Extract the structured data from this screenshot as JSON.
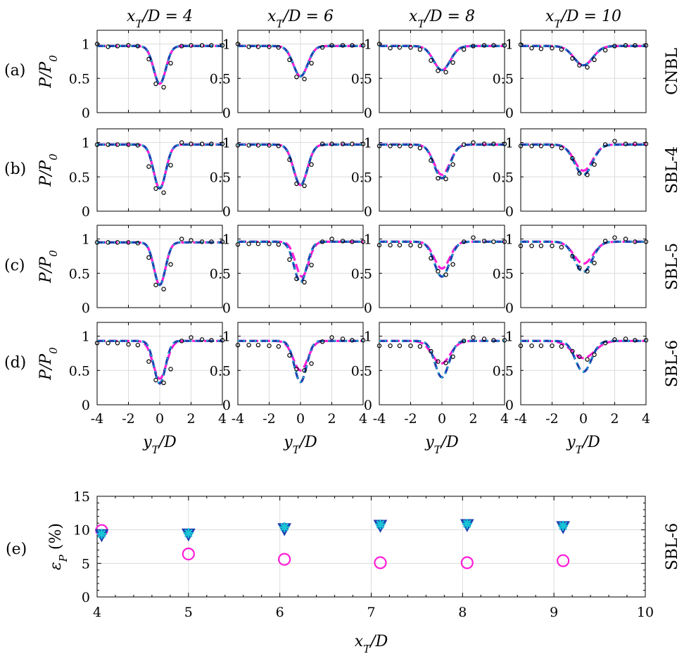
{
  "chart_data": [
    {
      "type": "line",
      "description": "Grid of 16 lateral profiles of normalized turbine power P/P0 versus yT/D at 4 downstream positions (columns) and 4 stability cases (rows)",
      "columns": [
        "x_T/D = 4",
        "x_T/D = 6",
        "x_T/D = 8",
        "x_T/D = 10"
      ],
      "rows": [
        {
          "tag": "(a)",
          "case": "CNBL"
        },
        {
          "tag": "(b)",
          "case": "SBL-4"
        },
        {
          "tag": "(c)",
          "case": "SBL-5"
        },
        {
          "tag": "(d)",
          "case": "SBL-6"
        }
      ],
      "xlabel": "y_T/D",
      "ylabel": "P/P_0",
      "xlim": [
        -4,
        4
      ],
      "ylim": [
        0,
        1.2
      ],
      "xticks": [
        "-4",
        "-2",
        "0",
        "2",
        "4"
      ],
      "yticks": [
        "0",
        "0.5",
        "1"
      ],
      "grid": true,
      "series_names": [
        "measured (circles)",
        "model A (blue dashed)",
        "model B (cyan dotted)",
        "model C (magenta dashed)"
      ],
      "colors": {
        "circles": "#000000",
        "blue": "#1f3fb0",
        "cyan": "#17c5d6",
        "magenta": "#ff1fd7"
      },
      "markers_x": [
        -4,
        -3.3,
        -2.7,
        -2.0,
        -1.4,
        -0.7,
        -0.25,
        0.25,
        0.7,
        1.4,
        2.0,
        2.7,
        3.3,
        4
      ],
      "panels": [
        [
          {
            "base": 0.97,
            "blue_min": 0.42,
            "blue_w": 0.55,
            "mag_min": 0.42,
            "mag_w": 0.55,
            "mag_shift": 0,
            "markers": [
              1.0,
              0.96,
              0.97,
              0.98,
              0.97,
              0.78,
              0.42,
              0.37,
              0.72,
              0.97,
              0.98,
              0.98,
              0.98,
              0.98
            ]
          },
          {
            "base": 0.97,
            "blue_min": 0.53,
            "blue_w": 0.65,
            "mag_min": 0.53,
            "mag_w": 0.65,
            "mag_shift": 0,
            "markers": [
              1.0,
              0.96,
              0.96,
              0.96,
              0.95,
              0.77,
              0.52,
              0.49,
              0.72,
              0.95,
              0.98,
              0.98,
              0.98,
              0.98
            ]
          },
          {
            "base": 0.97,
            "blue_min": 0.62,
            "blue_w": 0.75,
            "mag_min": 0.62,
            "mag_w": 0.75,
            "mag_shift": 0,
            "markers": [
              1.0,
              0.94,
              0.95,
              0.95,
              0.92,
              0.76,
              0.61,
              0.59,
              0.73,
              0.92,
              0.97,
              0.98,
              0.98,
              0.98
            ]
          },
          {
            "base": 0.97,
            "blue_min": 0.69,
            "blue_w": 0.85,
            "mag_min": 0.69,
            "mag_w": 0.85,
            "mag_shift": 0,
            "markers": [
              0.99,
              0.94,
              0.93,
              0.94,
              0.92,
              0.79,
              0.69,
              0.66,
              0.77,
              0.91,
              0.97,
              0.98,
              0.98,
              0.98
            ]
          }
        ],
        [
          {
            "base": 0.97,
            "blue_min": 0.33,
            "blue_w": 0.55,
            "mag_min": 0.33,
            "mag_w": 0.55,
            "mag_shift": 0,
            "markers": [
              0.97,
              0.97,
              0.97,
              0.97,
              0.96,
              0.65,
              0.33,
              0.27,
              0.67,
              1.0,
              0.98,
              0.98,
              0.98,
              0.98
            ]
          },
          {
            "base": 0.97,
            "blue_min": 0.38,
            "blue_w": 0.62,
            "mag_min": 0.38,
            "mag_w": 0.62,
            "mag_shift": 0,
            "markers": [
              0.96,
              0.96,
              0.96,
              0.96,
              0.95,
              0.75,
              0.4,
              0.37,
              0.68,
              0.98,
              0.98,
              0.98,
              0.98,
              0.98
            ]
          },
          {
            "base": 0.97,
            "blue_min": 0.48,
            "blue_w": 0.7,
            "mag_min": 0.53,
            "mag_w": 0.72,
            "mag_shift": 0,
            "markers": [
              0.95,
              0.95,
              0.95,
              0.95,
              0.92,
              0.74,
              0.48,
              0.47,
              0.68,
              0.97,
              1.0,
              0.98,
              0.98,
              0.98
            ]
          },
          {
            "base": 0.97,
            "blue_min": 0.53,
            "blue_w": 0.8,
            "mag_min": 0.59,
            "mag_w": 0.82,
            "mag_shift": 0,
            "markers": [
              0.95,
              0.95,
              0.95,
              0.95,
              0.92,
              0.77,
              0.55,
              0.53,
              0.68,
              0.97,
              1.02,
              0.98,
              0.98,
              0.98
            ]
          }
        ],
        [
          {
            "base": 0.95,
            "blue_min": 0.33,
            "blue_w": 0.52,
            "mag_min": 0.33,
            "mag_w": 0.52,
            "mag_shift": 0,
            "markers": [
              0.95,
              0.95,
              0.95,
              0.95,
              0.94,
              0.73,
              0.33,
              0.27,
              0.63,
              1.0,
              0.98,
              0.96,
              0.96,
              0.96
            ]
          },
          {
            "base": 0.96,
            "blue_min": 0.37,
            "blue_w": 0.58,
            "mag_min": 0.45,
            "mag_w": 0.58,
            "mag_shift": 0.1,
            "markers": [
              0.92,
              0.93,
              0.93,
              0.93,
              0.92,
              0.7,
              0.42,
              0.37,
              0.62,
              0.96,
              1.0,
              0.97,
              0.96,
              0.96
            ]
          },
          {
            "base": 0.96,
            "blue_min": 0.45,
            "blue_w": 0.68,
            "mag_min": 0.57,
            "mag_w": 0.7,
            "mag_shift": 0,
            "markers": [
              0.91,
              0.91,
              0.91,
              0.91,
              0.9,
              0.72,
              0.53,
              0.48,
              0.63,
              0.96,
              1.02,
              0.97,
              0.96,
              0.96
            ]
          },
          {
            "base": 0.96,
            "blue_min": 0.52,
            "blue_w": 0.78,
            "mag_min": 0.64,
            "mag_w": 0.85,
            "mag_shift": 0,
            "markers": [
              0.9,
              0.9,
              0.9,
              0.9,
              0.88,
              0.75,
              0.58,
              0.53,
              0.65,
              0.97,
              1.02,
              1.0,
              0.96,
              0.96
            ]
          }
        ],
        [
          {
            "base": 0.93,
            "blue_min": 0.31,
            "blue_w": 0.52,
            "mag_min": 0.38,
            "mag_w": 0.6,
            "mag_shift": 0,
            "markers": [
              0.9,
              0.9,
              0.9,
              0.88,
              0.87,
              0.63,
              0.36,
              0.32,
              0.52,
              0.93,
              0.98,
              0.95,
              0.94,
              0.94
            ]
          },
          {
            "base": 0.93,
            "blue_min": 0.33,
            "blue_w": 0.55,
            "mag_min": 0.5,
            "mag_w": 0.65,
            "mag_shift": 0,
            "markers": [
              0.87,
              0.87,
              0.87,
              0.86,
              0.85,
              0.72,
              0.52,
              0.5,
              0.6,
              0.92,
              0.98,
              0.96,
              0.94,
              0.94
            ]
          },
          {
            "base": 0.93,
            "blue_min": 0.4,
            "blue_w": 0.63,
            "mag_min": 0.6,
            "mag_w": 0.8,
            "mag_shift": -0.05,
            "markers": [
              0.86,
              0.86,
              0.86,
              0.86,
              0.85,
              0.78,
              0.63,
              0.61,
              0.7,
              0.93,
              0.98,
              0.96,
              0.94,
              0.94
            ]
          },
          {
            "base": 0.93,
            "blue_min": 0.48,
            "blue_w": 0.72,
            "mag_min": 0.68,
            "mag_w": 1.0,
            "mag_shift": 0,
            "markers": [
              0.86,
              0.86,
              0.86,
              0.86,
              0.85,
              0.78,
              0.7,
              0.66,
              0.73,
              0.9,
              0.95,
              0.96,
              0.94,
              0.94
            ]
          }
        ]
      ]
    },
    {
      "type": "scatter",
      "tag": "(e)",
      "case": "SBL-6",
      "xlabel": "x_T/D",
      "ylabel": "ε_P (%)",
      "xlim": [
        4,
        10
      ],
      "ylim": [
        0,
        15
      ],
      "xticks": [
        "4",
        "5",
        "6",
        "7",
        "8",
        "9",
        "10"
      ],
      "yticks": [
        "0",
        "5",
        "10",
        "15"
      ],
      "grid": true,
      "series": [
        {
          "name": "blue triangles",
          "marker": "triangle-down",
          "color": "#1f3fb0",
          "x": [
            4.05,
            5.0,
            6.05,
            7.1,
            8.05,
            9.1
          ],
          "values": [
            9.2,
            9.3,
            10.1,
            10.6,
            10.7,
            10.4
          ]
        },
        {
          "name": "cyan stars",
          "marker": "star",
          "color": "#17c5d6",
          "x": [
            4.05,
            5.0,
            6.05,
            7.1,
            8.05,
            9.1
          ],
          "values": [
            9.4,
            9.5,
            10.4,
            10.8,
            10.9,
            10.6
          ]
        },
        {
          "name": "magenta circles",
          "marker": "circle",
          "color": "#ff1fd7",
          "x": [
            4.05,
            5.0,
            6.05,
            7.1,
            8.05,
            9.1
          ],
          "values": [
            9.9,
            6.4,
            5.6,
            5.1,
            5.1,
            5.4
          ]
        }
      ]
    }
  ]
}
